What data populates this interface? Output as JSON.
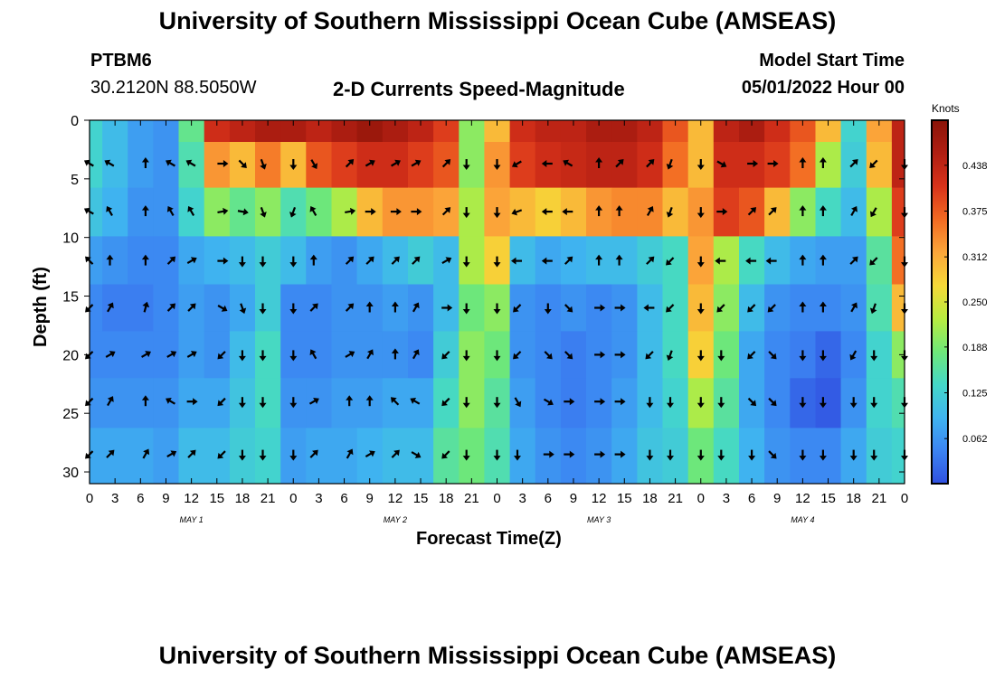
{
  "header": {
    "title": "University of Southern Mississippi Ocean Cube (AMSEAS)",
    "station": "PTBM6",
    "coords": "30.2120N  88.5050W",
    "chart_title": "2-D Currents Speed-Magnitude",
    "model_start_label": "Model Start Time",
    "model_start_value": "05/01/2022 Hour 00"
  },
  "footer_title": "University of Southern Mississippi Ocean Cube (AMSEAS)",
  "colorbar": {
    "unit": "Knots",
    "ticks": [
      0.062,
      0.125,
      0.188,
      0.25,
      0.312,
      0.375,
      0.438
    ],
    "tick_labels": [
      "0.062",
      "0.125",
      "0.188",
      "0.250",
      "0.312",
      "0.375",
      "0.438"
    ],
    "min": 0.0,
    "max": 0.5,
    "colors": [
      "#3050e0",
      "#3c84f2",
      "#3fb4f0",
      "#44d8c8",
      "#6fe878",
      "#b8ec40",
      "#f6d838",
      "#fba63a",
      "#f26a22",
      "#d8321a",
      "#b01e12",
      "#8a1408"
    ]
  },
  "chart_data": {
    "type": "heatmap",
    "title": "2-D Currents Speed-Magnitude",
    "xlabel": "Forecast Time(Z)",
    "ylabel": "Depth (ft)",
    "x_range_hours": [
      0,
      96
    ],
    "y_range_ft": [
      0,
      31
    ],
    "x_tick_labels": [
      "0",
      "3",
      "6",
      "9",
      "12",
      "15",
      "18",
      "21",
      "0",
      "3",
      "6",
      "9",
      "12",
      "15",
      "18",
      "21",
      "0",
      "3",
      "6",
      "9",
      "12",
      "15",
      "18",
      "21",
      "0",
      "3",
      "6",
      "9",
      "12",
      "15",
      "18",
      "21",
      "0"
    ],
    "y_ticks": [
      0,
      5,
      10,
      15,
      20,
      25,
      30
    ],
    "y_tick_labels": [
      "0",
      "5",
      "10",
      "15",
      "20",
      "25",
      "30"
    ],
    "day_labels": [
      {
        "text": "MAY 1",
        "hour": 12
      },
      {
        "text": "MAY 2",
        "hour": 36
      },
      {
        "text": "MAY 3",
        "hour": 60
      },
      {
        "text": "MAY 4",
        "hour": 84
      }
    ],
    "speed_knots_by_depth_band": {
      "depths_ft": [
        0,
        3.7,
        7.8,
        12,
        16,
        20,
        24,
        28.5
      ],
      "hours": [
        0,
        3,
        6,
        9,
        12,
        15,
        18,
        21,
        24,
        27,
        30,
        33,
        36,
        39,
        42,
        45,
        48,
        51,
        54,
        57,
        60,
        63,
        66,
        69,
        72,
        75,
        78,
        81,
        84,
        87,
        90,
        93,
        96
      ],
      "rows": [
        [
          0.13,
          0.1,
          0.07,
          0.06,
          0.17,
          0.42,
          0.44,
          0.46,
          0.46,
          0.44,
          0.46,
          0.48,
          0.46,
          0.44,
          0.4,
          0.2,
          0.3,
          0.42,
          0.44,
          0.44,
          0.46,
          0.46,
          0.44,
          0.38,
          0.3,
          0.44,
          0.46,
          0.42,
          0.38,
          0.3,
          0.13,
          0.32,
          0.44
        ],
        [
          0.13,
          0.1,
          0.07,
          0.06,
          0.15,
          0.33,
          0.3,
          0.35,
          0.3,
          0.38,
          0.4,
          0.42,
          0.42,
          0.4,
          0.38,
          0.2,
          0.33,
          0.4,
          0.42,
          0.43,
          0.44,
          0.44,
          0.42,
          0.36,
          0.3,
          0.42,
          0.42,
          0.4,
          0.36,
          0.22,
          0.12,
          0.3,
          0.44
        ],
        [
          0.11,
          0.09,
          0.06,
          0.06,
          0.13,
          0.2,
          0.17,
          0.2,
          0.15,
          0.18,
          0.22,
          0.3,
          0.33,
          0.33,
          0.32,
          0.22,
          0.32,
          0.3,
          0.28,
          0.3,
          0.33,
          0.34,
          0.34,
          0.3,
          0.33,
          0.4,
          0.38,
          0.3,
          0.2,
          0.14,
          0.1,
          0.22,
          0.4
        ],
        [
          0.07,
          0.06,
          0.05,
          0.05,
          0.08,
          0.09,
          0.1,
          0.12,
          0.1,
          0.07,
          0.06,
          0.08,
          0.1,
          0.12,
          0.1,
          0.22,
          0.28,
          0.1,
          0.08,
          0.09,
          0.1,
          0.1,
          0.12,
          0.14,
          0.32,
          0.22,
          0.14,
          0.1,
          0.08,
          0.07,
          0.07,
          0.16,
          0.36
        ],
        [
          0.05,
          0.04,
          0.04,
          0.05,
          0.07,
          0.06,
          0.08,
          0.12,
          0.05,
          0.05,
          0.06,
          0.06,
          0.07,
          0.06,
          0.1,
          0.18,
          0.2,
          0.06,
          0.05,
          0.06,
          0.05,
          0.06,
          0.1,
          0.14,
          0.3,
          0.2,
          0.1,
          0.06,
          0.05,
          0.05,
          0.06,
          0.15,
          0.3
        ],
        [
          0.05,
          0.05,
          0.05,
          0.05,
          0.07,
          0.06,
          0.1,
          0.14,
          0.05,
          0.05,
          0.06,
          0.06,
          0.06,
          0.05,
          0.12,
          0.2,
          0.18,
          0.06,
          0.05,
          0.04,
          0.05,
          0.06,
          0.1,
          0.14,
          0.28,
          0.18,
          0.08,
          0.05,
          0.04,
          0.02,
          0.05,
          0.13,
          0.2
        ],
        [
          0.06,
          0.06,
          0.06,
          0.06,
          0.08,
          0.08,
          0.11,
          0.14,
          0.06,
          0.06,
          0.07,
          0.07,
          0.08,
          0.08,
          0.14,
          0.2,
          0.16,
          0.07,
          0.05,
          0.04,
          0.05,
          0.07,
          0.1,
          0.13,
          0.22,
          0.16,
          0.08,
          0.05,
          0.02,
          0.01,
          0.06,
          0.13,
          0.15
        ],
        [
          0.08,
          0.08,
          0.08,
          0.07,
          0.1,
          0.1,
          0.12,
          0.13,
          0.07,
          0.08,
          0.08,
          0.09,
          0.1,
          0.1,
          0.16,
          0.18,
          0.15,
          0.08,
          0.06,
          0.05,
          0.06,
          0.08,
          0.11,
          0.12,
          0.18,
          0.14,
          0.09,
          0.06,
          0.05,
          0.05,
          0.08,
          0.12,
          0.13
        ]
      ]
    },
    "arrow_depths_ft": [
      3.7,
      7.8,
      12,
      16,
      20,
      24,
      28.5
    ],
    "arrow_hours": [
      0,
      2.4,
      6.6,
      9.6,
      12,
      15.6,
      18,
      20.4,
      24,
      26.4,
      30.6,
      33,
      36,
      38.4,
      42,
      44.4,
      48,
      50.4,
      54,
      56.4,
      60,
      62.4,
      66,
      68.4,
      72,
      74.4,
      78,
      80.4,
      84,
      86.4,
      90,
      92.4,
      96
    ],
    "arrow_direction_deg": [
      [
        300,
        300,
        0,
        300,
        300,
        90,
        135,
        160,
        180,
        150,
        45,
        60,
        60,
        60,
        45,
        180,
        180,
        240,
        270,
        300,
        0,
        45,
        45,
        200,
        180,
        120,
        90,
        90,
        0,
        0,
        45,
        225,
        180
      ],
      [
        300,
        330,
        0,
        330,
        330,
        80,
        100,
        160,
        200,
        330,
        80,
        90,
        90,
        90,
        45,
        180,
        180,
        250,
        270,
        270,
        0,
        0,
        30,
        200,
        180,
        90,
        45,
        45,
        0,
        0,
        30,
        210,
        180
      ],
      [
        315,
        0,
        0,
        45,
        60,
        90,
        180,
        180,
        180,
        0,
        45,
        45,
        45,
        45,
        60,
        180,
        180,
        270,
        270,
        45,
        0,
        0,
        45,
        225,
        180,
        270,
        270,
        270,
        0,
        0,
        45,
        225,
        180
      ],
      [
        225,
        30,
        15,
        45,
        45,
        120,
        160,
        180,
        180,
        45,
        45,
        0,
        0,
        30,
        90,
        180,
        180,
        225,
        180,
        135,
        90,
        90,
        270,
        225,
        180,
        225,
        225,
        225,
        0,
        0,
        30,
        200,
        180
      ],
      [
        225,
        60,
        60,
        60,
        60,
        225,
        180,
        180,
        180,
        330,
        60,
        30,
        0,
        30,
        225,
        180,
        180,
        225,
        135,
        135,
        90,
        90,
        225,
        200,
        180,
        180,
        225,
        135,
        180,
        180,
        210,
        180,
        180
      ],
      [
        225,
        30,
        0,
        300,
        90,
        225,
        180,
        180,
        180,
        60,
        0,
        0,
        315,
        300,
        225,
        180,
        180,
        150,
        120,
        90,
        90,
        90,
        180,
        180,
        180,
        180,
        135,
        135,
        180,
        180,
        180,
        180,
        180
      ],
      [
        225,
        45,
        30,
        60,
        45,
        225,
        180,
        180,
        180,
        45,
        30,
        60,
        45,
        120,
        225,
        180,
        180,
        180,
        90,
        90,
        90,
        90,
        180,
        180,
        180,
        180,
        180,
        135,
        180,
        180,
        180,
        180,
        180
      ]
    ]
  }
}
